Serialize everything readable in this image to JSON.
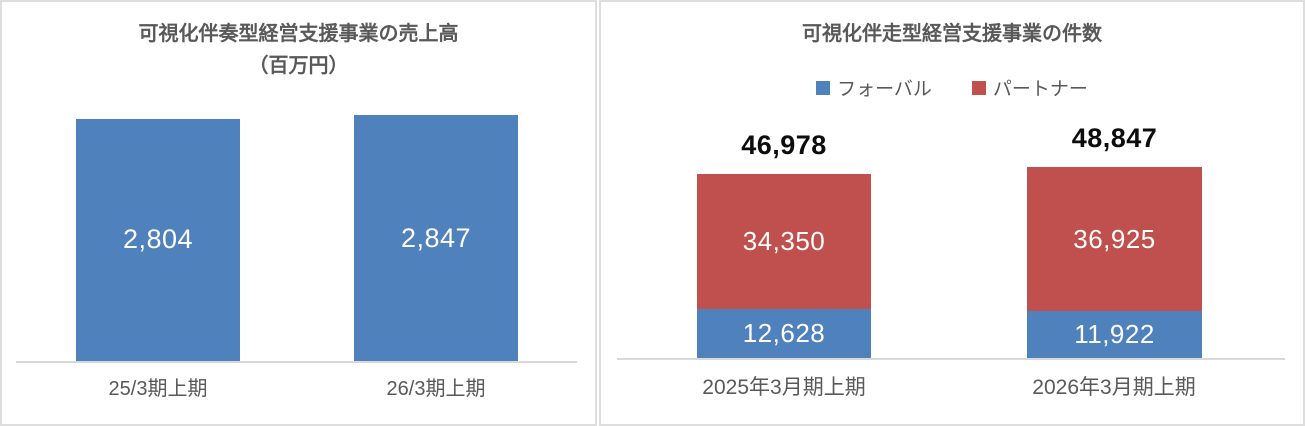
{
  "colors": {
    "bar_blue": "#4f81bd",
    "bar_red": "#c0504d",
    "axis_gray": "#d9d9d9",
    "text_gray": "#595959",
    "bar_label_white": "#ffffff",
    "total_black": "#0d0d0d"
  },
  "chart_data": [
    {
      "type": "bar",
      "title": "可視化伴奏型経営支援事業の売上高（百万円）",
      "title_lines": [
        "可視化伴奏型経営支援事業の売上高",
        "（百万円）"
      ],
      "categories": [
        "25/3期上期",
        "26/3期上期"
      ],
      "values": [
        2804,
        2847
      ],
      "value_labels": [
        "2,804",
        "2,847"
      ],
      "bar_color": "#4f81bd",
      "xlabel": "",
      "ylabel": "",
      "ylim": [
        0,
        2847
      ],
      "grid": false,
      "legend": "none",
      "value_label_position": "inside-center"
    },
    {
      "type": "bar",
      "stacked": true,
      "title": "可視化伴走型経営支援事業の件数",
      "categories": [
        "2025年3月期上期",
        "2026年3月期上期"
      ],
      "series": [
        {
          "name": "フォーバル",
          "color": "#4f81bd",
          "values": [
            12628,
            11922
          ],
          "value_labels": [
            "12,628",
            "11,922"
          ]
        },
        {
          "name": "パートナー",
          "color": "#c0504d",
          "values": [
            34350,
            36925
          ],
          "value_labels": [
            "34,350",
            "36,925"
          ]
        }
      ],
      "totals": [
        46978,
        48847
      ],
      "total_labels": [
        "46,978",
        "48,847"
      ],
      "xlabel": "",
      "ylabel": "",
      "ylim": [
        0,
        48847
      ],
      "grid": false,
      "legend_position": "top",
      "total_label_position": "above-bar"
    }
  ]
}
